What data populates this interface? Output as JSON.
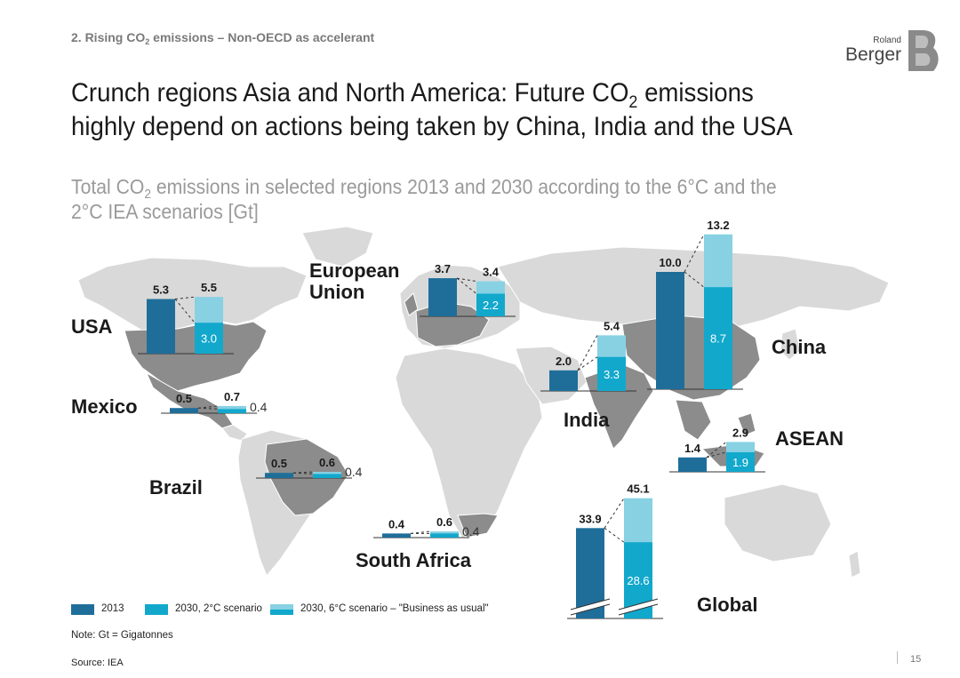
{
  "breadcrumb": {
    "pre": "2. Rising CO",
    "sub": "2",
    "post": " emissions – Non-OECD as accelerant"
  },
  "title": {
    "line1_pre": "Crunch regions Asia and North America: Future CO",
    "line1_sub": "2",
    "line1_post": " emissions",
    "line2": "highly depend on actions being taken by China, India and the USA"
  },
  "subtitle": {
    "pre": "Total CO",
    "sub": "2",
    "post": " emissions in selected regions 2013 and 2030 according to the 6°C and the",
    "line2": "2°C IEA scenarios [Gt]"
  },
  "logo": {
    "top": "Roland",
    "bottom": "Berger"
  },
  "colors": {
    "bar_2013": "#1f6e9a",
    "bar_2c": "#12a8cc",
    "bar_6c": "#87d1e3",
    "map_land": "#d9d9d9",
    "map_highlight": "#8c8c8c"
  },
  "legend": [
    {
      "label": "2013",
      "color": "#1f6e9a"
    },
    {
      "label": "2030, 2°C scenario",
      "color": "#12a8cc"
    },
    {
      "label": "2030, 6°C scenario – \"Business as usual\"",
      "color": "#87d1e3"
    }
  ],
  "note": "Note: Gt = Gigatonnes",
  "source": "Source: IEA",
  "page_number": "15",
  "chart_data": {
    "type": "bar",
    "series": [
      {
        "name": "2013",
        "values": [
          5.3,
          0.5,
          0.5,
          3.7,
          0.4,
          2.0,
          10.0,
          1.4,
          33.9
        ]
      },
      {
        "name": "2030, 2°C scenario",
        "values": [
          3.0,
          0.4,
          0.4,
          2.2,
          0.4,
          3.3,
          8.7,
          1.9,
          28.6
        ]
      },
      {
        "name": "2030, 6°C scenario – \"Business as usual\"",
        "values": [
          5.5,
          0.7,
          0.6,
          3.4,
          0.6,
          5.4,
          13.2,
          2.9,
          45.1
        ]
      }
    ],
    "regions": [
      {
        "id": "usa",
        "name": "USA",
        "v2013": 5.3,
        "v6c": 5.5,
        "v2c": 3.0,
        "l2013": "5.3",
        "l6c": "5.5",
        "l2c": "3.0"
      },
      {
        "id": "mexico",
        "name": "Mexico",
        "v2013": 0.5,
        "v6c": 0.7,
        "v2c": 0.4,
        "l2013": "0.5",
        "l6c": "0.7",
        "l2c": "0.4"
      },
      {
        "id": "brazil",
        "name": "Brazil",
        "v2013": 0.5,
        "v6c": 0.6,
        "v2c": 0.4,
        "l2013": "0.5",
        "l6c": "0.6",
        "l2c": "0.4"
      },
      {
        "id": "eu",
        "name": "European",
        "name2": "Union",
        "v2013": 3.7,
        "v6c": 3.4,
        "v2c": 2.2,
        "l2013": "3.7",
        "l6c": "3.4",
        "l2c": "2.2"
      },
      {
        "id": "southafrica",
        "name": "South Africa",
        "v2013": 0.4,
        "v6c": 0.6,
        "v2c": 0.4,
        "l2013": "0.4",
        "l6c": "0.6",
        "l2c": "0.4"
      },
      {
        "id": "india",
        "name": "India",
        "v2013": 2.0,
        "v6c": 5.4,
        "v2c": 3.3,
        "l2013": "2.0",
        "l6c": "5.4",
        "l2c": "3.3"
      },
      {
        "id": "china",
        "name": "China",
        "v2013": 10.0,
        "v6c": 13.2,
        "v2c": 8.7,
        "l2013": "10.0",
        "l6c": "13.2",
        "l2c": "8.7"
      },
      {
        "id": "asean",
        "name": "ASEAN",
        "v2013": 1.4,
        "v6c": 2.9,
        "v2c": 1.9,
        "l2013": "1.4",
        "l6c": "2.9",
        "l2c": "1.9"
      },
      {
        "id": "global",
        "name": "Global",
        "v2013": 33.9,
        "v6c": 45.1,
        "v2c": 28.6,
        "l2013": "33.9",
        "l6c": "45.1",
        "l2c": "28.6"
      }
    ]
  }
}
